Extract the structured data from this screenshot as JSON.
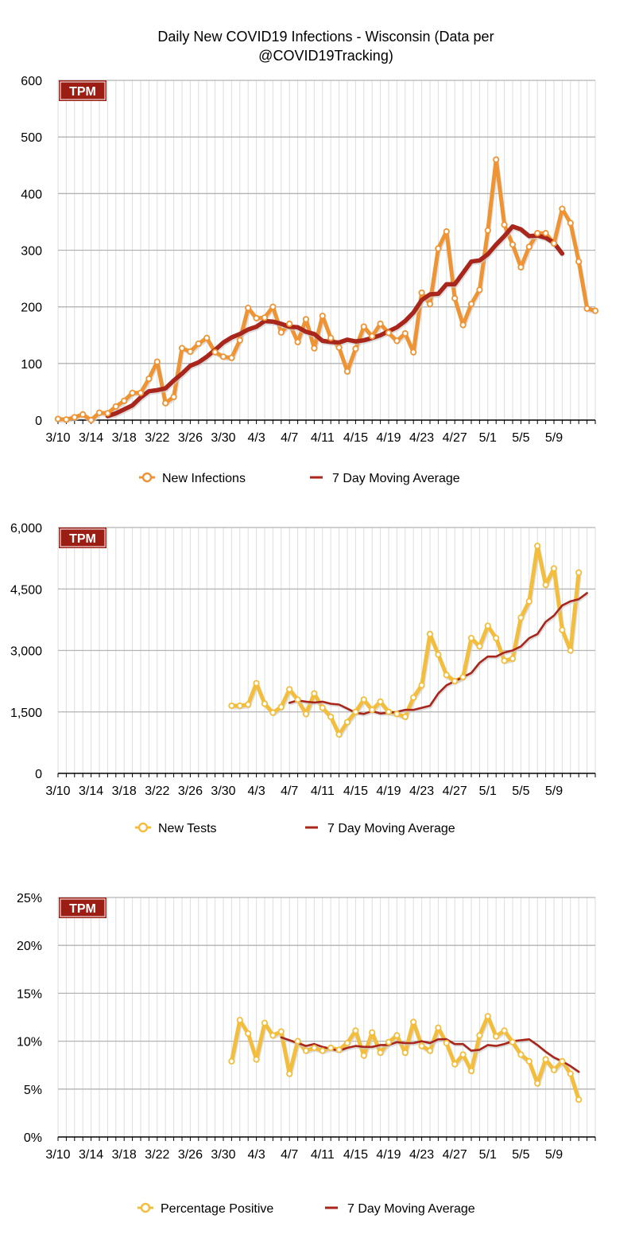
{
  "title_line1": "Daily New COVID19 Infections - Wisconsin (Data per",
  "title_line2": "@COVID19Tracking)",
  "logo_text": "TPM",
  "colors": {
    "infections": "#ef9434",
    "tests": "#f3be3e",
    "positive": "#f3be3e",
    "moving_avg": "#a8261b",
    "logo_bg": "#9b1d13",
    "grid_major": "#b3b3b3",
    "grid_minor": "#dedede"
  },
  "chart_data": [
    {
      "type": "line",
      "x_tick_labels": [
        "3/10",
        "3/14",
        "3/18",
        "3/22",
        "3/26",
        "3/30",
        "4/3",
        "4/7",
        "4/11",
        "4/15",
        "4/19",
        "4/23",
        "4/27",
        "5/1",
        "5/5",
        "5/9"
      ],
      "y_tick_labels": [
        "0",
        "100",
        "200",
        "300",
        "400",
        "500",
        "600"
      ],
      "ylim": [
        0,
        600
      ],
      "legend_position": "bottom",
      "series": [
        {
          "name": "New Infections",
          "values": [
            2,
            1,
            5,
            10,
            0,
            13,
            12,
            24,
            34,
            48,
            48,
            73,
            103,
            30,
            41,
            127,
            121,
            135,
            145,
            120,
            112,
            110,
            141,
            198,
            180,
            181,
            200,
            155,
            170,
            138,
            178,
            127,
            184,
            145,
            128,
            86,
            126,
            165,
            148,
            170,
            154,
            140,
            153,
            120,
            225,
            205,
            303,
            333,
            215,
            168,
            205,
            230,
            335,
            460,
            345,
            310,
            270,
            306,
            330,
            330,
            312,
            373,
            348,
            280,
            197,
            193
          ]
        },
        {
          "name": "7 Day Moving Average",
          "start_index": 6,
          "values": [
            7,
            12,
            19,
            26,
            40,
            51,
            53,
            56,
            70,
            82,
            96,
            102,
            112,
            124,
            137,
            146,
            152,
            160,
            165,
            175,
            174,
            170,
            165,
            164,
            156,
            152,
            140,
            138,
            137,
            142,
            139,
            141,
            145,
            150,
            157,
            164,
            175,
            190,
            212,
            222,
            223,
            240,
            240,
            260,
            280,
            282,
            293,
            310,
            325,
            342,
            337,
            325,
            326,
            322,
            313,
            294
          ]
        }
      ]
    },
    {
      "type": "line",
      "x_tick_labels": [
        "3/10",
        "3/14",
        "3/18",
        "3/22",
        "3/26",
        "3/30",
        "4/3",
        "4/7",
        "4/11",
        "4/15",
        "4/19",
        "4/23",
        "4/27",
        "5/1",
        "5/5",
        "5/9"
      ],
      "y_tick_labels": [
        "0",
        "1,500",
        "3,000",
        "4,500",
        "6,000"
      ],
      "ylim": [
        0,
        6000
      ],
      "legend_position": "bottom",
      "series": [
        {
          "name": "New Tests",
          "start_index": 21,
          "values": [
            1650,
            1650,
            1680,
            2200,
            1700,
            1480,
            1620,
            2050,
            1800,
            1450,
            1950,
            1600,
            1380,
            950,
            1250,
            1500,
            1800,
            1550,
            1750,
            1500,
            1450,
            1380,
            1850,
            2150,
            3400,
            2900,
            2400,
            2250,
            2350,
            3300,
            3100,
            3600,
            3300,
            2750,
            2800,
            3800,
            4200,
            5550,
            4600,
            5000,
            3500,
            3000,
            4900
          ]
        },
        {
          "name": "7 Day Moving Average",
          "start_index": 28,
          "values": [
            1720,
            1780,
            1750,
            1730,
            1750,
            1700,
            1680,
            1580,
            1480,
            1450,
            1520,
            1460,
            1480,
            1500,
            1550,
            1550,
            1600,
            1650,
            1950,
            2150,
            2250,
            2350,
            2450,
            2700,
            2850,
            2850,
            2950,
            3000,
            3100,
            3300,
            3400,
            3700,
            3850,
            4100,
            4200,
            4250,
            4400
          ]
        }
      ]
    },
    {
      "type": "line",
      "x_tick_labels": [
        "3/10",
        "3/14",
        "3/18",
        "3/22",
        "3/26",
        "3/30",
        "4/3",
        "4/7",
        "4/11",
        "4/15",
        "4/19",
        "4/23",
        "4/27",
        "5/1",
        "5/5",
        "5/9"
      ],
      "y_tick_labels": [
        "0%",
        "5%",
        "10%",
        "15%",
        "20%",
        "25%"
      ],
      "ylim": [
        0,
        25
      ],
      "legend_position": "bottom",
      "series": [
        {
          "name": "Percentage Positive",
          "start_index": 21,
          "values": [
            7.9,
            12.2,
            10.8,
            8.1,
            11.9,
            10.6,
            11.0,
            6.6,
            10.0,
            9.0,
            9.3,
            9.0,
            9.3,
            9.1,
            9.8,
            11.1,
            8.5,
            10.9,
            8.8,
            9.9,
            10.6,
            8.8,
            12.0,
            9.5,
            9.0,
            11.4,
            9.8,
            7.6,
            8.6,
            6.9,
            10.6,
            12.6,
            10.5,
            11.1,
            9.9,
            8.6,
            7.9,
            5.6,
            8.1,
            7.0,
            7.9,
            6.6,
            3.9
          ]
        },
        {
          "name": "7 Day Moving Average",
          "start_index": 27,
          "values": [
            10.4,
            10.1,
            9.8,
            9.5,
            9.7,
            9.4,
            9.2,
            9.0,
            9.3,
            9.5,
            9.4,
            9.4,
            9.6,
            9.6,
            9.9,
            9.8,
            9.8,
            10.0,
            9.8,
            10.2,
            10.2,
            9.7,
            9.7,
            9.0,
            9.1,
            9.6,
            9.5,
            9.7,
            10.0,
            10.1,
            10.2,
            9.6,
            8.9,
            8.3,
            7.9,
            7.4,
            6.8
          ]
        }
      ]
    }
  ]
}
